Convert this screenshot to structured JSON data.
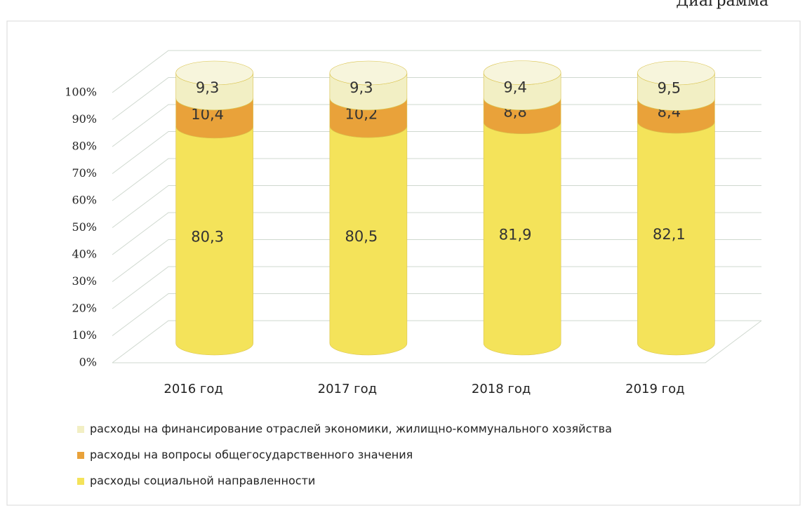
{
  "chart_data": {
    "type": "stacked_cylinder",
    "annotation": "Диаграмма",
    "categories": [
      "2016 год",
      "2017 год",
      "2018 год",
      "2019 год"
    ],
    "series": [
      {
        "name": "расходы социальной направленности",
        "color": "#f4e35a",
        "values": [
          80.3,
          80.5,
          81.9,
          82.1
        ],
        "value_labels": [
          "80,3",
          "80,5",
          "81,9",
          "82,1"
        ]
      },
      {
        "name": "расходы на вопросы общегосударственного значения",
        "color": "#e9a23a",
        "values": [
          10.4,
          10.2,
          8.8,
          8.4
        ],
        "value_labels": [
          "10,4",
          "10,2",
          "8,8",
          "8,4"
        ]
      },
      {
        "name": "расходы на финансирование отраслей экономики, жилищно-коммунального хозяйства",
        "color": "#f2efc4",
        "values": [
          9.3,
          9.3,
          9.4,
          9.5
        ],
        "value_labels": [
          "9,3",
          "9,3",
          "9,4",
          "9,5"
        ]
      }
    ],
    "ylim": [
      0,
      100
    ],
    "yticks": [
      {
        "value": 0,
        "label": "0%"
      },
      {
        "value": 10,
        "label": "10%"
      },
      {
        "value": 20,
        "label": "20%"
      },
      {
        "value": 30,
        "label": "30%"
      },
      {
        "value": 40,
        "label": "40%"
      },
      {
        "value": 50,
        "label": "50%"
      },
      {
        "value": 60,
        "label": "60%"
      },
      {
        "value": 70,
        "label": "70%"
      },
      {
        "value": 80,
        "label": "80%"
      },
      {
        "value": 90,
        "label": "90%"
      },
      {
        "value": 100,
        "label": "100%"
      }
    ],
    "grid": true
  }
}
